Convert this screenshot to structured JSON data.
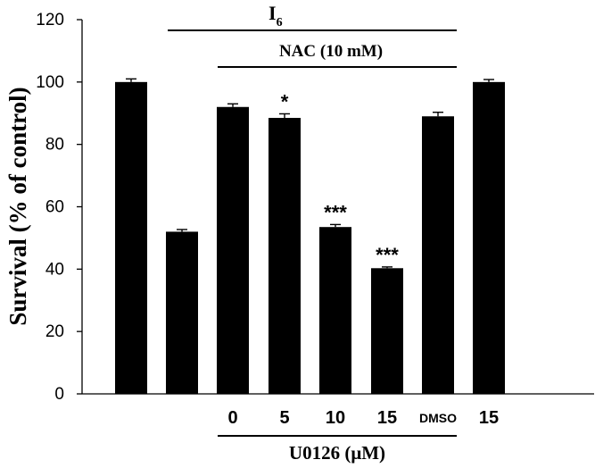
{
  "chart_data": {
    "type": "bar",
    "title": "",
    "xlabel": "",
    "ylabel": "Survival (% of control)",
    "ylim": [
      0,
      120
    ],
    "yticks": [
      "0",
      "20",
      "40",
      "60",
      "80",
      "100",
      "120"
    ],
    "categories": [
      "",
      "",
      "0",
      "5",
      "10",
      "15",
      "DMSO",
      "15"
    ],
    "values": [
      100,
      52,
      92,
      88.5,
      53.5,
      40.3,
      89,
      100
    ],
    "errors": [
      1,
      0.7,
      1,
      1.3,
      0.8,
      0.4,
      1.3,
      0.8
    ],
    "significance": [
      "",
      "",
      "",
      "*",
      "***",
      "***",
      "",
      ""
    ],
    "bar_color": "#000000",
    "grid": false,
    "annotations": {
      "i6_label": "I",
      "i6_subscript": "6",
      "nac_label": "NAC (10 mM)",
      "u0126_label": "U0126 (μM)"
    }
  }
}
